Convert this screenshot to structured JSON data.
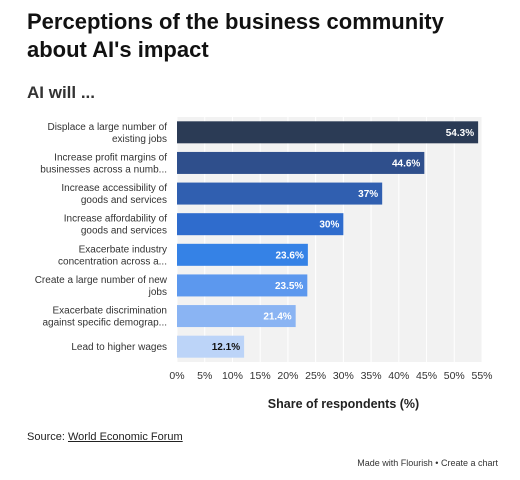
{
  "title": "Perceptions of the business community about AI's impact",
  "subtitle": "AI will ...",
  "source_prefix": "Source:",
  "source_link": "World Economic Forum",
  "footer": "Made with Flourish • Create a chart",
  "chart_data": {
    "type": "bar",
    "orientation": "horizontal",
    "categories": [
      [
        "Displace a large number of",
        "existing jobs"
      ],
      [
        "Increase profit margins of",
        "businesses across a numb..."
      ],
      [
        "Increase accessibility of",
        "goods and services"
      ],
      [
        "Increase affordability of",
        "goods and services"
      ],
      [
        "Exacerbate industry",
        "concentration across a..."
      ],
      [
        "Create a large number of new",
        "jobs"
      ],
      [
        "Exacerbate discrimination",
        "against specific demograp..."
      ],
      [
        "Lead to higher wages"
      ]
    ],
    "values": [
      54.3,
      44.6,
      37,
      30,
      23.6,
      23.5,
      21.4,
      12.1
    ],
    "value_labels": [
      "54.3%",
      "44.6%",
      "37%",
      "30%",
      "23.6%",
      "23.5%",
      "21.4%",
      "12.1%"
    ],
    "colors": [
      "#2b3b55",
      "#2f4f8c",
      "#305fb0",
      "#2f6ccd",
      "#3582e6",
      "#5c98ee",
      "#8ab4f3",
      "#bcd4f8"
    ],
    "value_label_colors": [
      "#ffffff",
      "#ffffff",
      "#ffffff",
      "#ffffff",
      "#ffffff",
      "#ffffff",
      "#ffffff",
      "#111111"
    ],
    "xlim": [
      0,
      55
    ],
    "xticks": [
      0,
      5,
      10,
      15,
      20,
      25,
      30,
      35,
      40,
      45,
      50,
      55
    ],
    "xtick_labels": [
      "0%",
      "5%",
      "10%",
      "15%",
      "20%",
      "25%",
      "30%",
      "35%",
      "40%",
      "45%",
      "50%",
      "55%"
    ],
    "xlabel": "Share of respondents (%)",
    "grid": true,
    "background_color": "#f2f2f2"
  }
}
